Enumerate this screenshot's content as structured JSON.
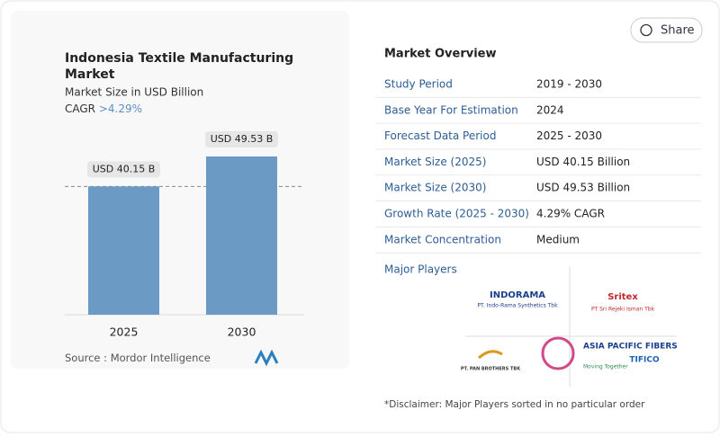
{
  "share": "Share",
  "chart_data": {
    "type": "bar",
    "title": "Indonesia Textile Manufacturing Market",
    "subtitle": "Market Size in USD Billion",
    "cagr_label": "CAGR",
    "cagr_value": ">4.29%",
    "categories": [
      "2025",
      "2030"
    ],
    "values": [
      40.15,
      49.53
    ],
    "value_labels": [
      "USD 40.15 B",
      "USD 49.53 B"
    ],
    "color": "#6b9ac4",
    "source_label": "Source :",
    "source": "Mordor Intelligence"
  },
  "overview": {
    "title": "Market Overview",
    "rows": [
      [
        "Study Period",
        "2019 - 2030"
      ],
      [
        "Base Year For Estimation",
        "2024"
      ],
      [
        "Forecast Data Period",
        "2025 - 2030"
      ],
      [
        "Market Size (2025)",
        "USD 40.15 Billion"
      ],
      [
        "Market Size (2030)",
        "USD 49.53 Billion"
      ],
      [
        "Growth Rate (2025 - 2030)",
        "4.29% CAGR"
      ],
      [
        "Market Concentration",
        "Medium"
      ]
    ]
  },
  "players": {
    "title": "Major Players",
    "logos": [
      [
        "INDORAMA",
        "PT. Indo-Rama Synthetics Tbk"
      ],
      [
        "Sritex",
        "PT Sri Rejeki Isman Tbk"
      ],
      [
        "PT. PAN BROTHERS TBK"
      ],
      [
        "ASIA PACIFIC FIBERS",
        "Moving Together"
      ],
      [
        "TIFICO"
      ]
    ],
    "disclaimer": "*Disclaimer: Major Players sorted in no particular order"
  }
}
